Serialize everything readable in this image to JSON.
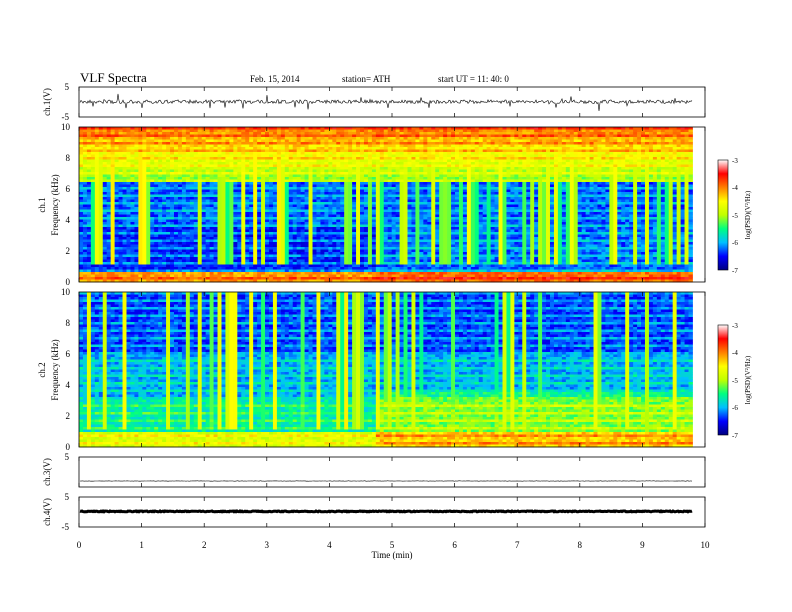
{
  "header": {
    "title": "VLF  Spectra",
    "date": "Feb. 15, 2014",
    "station": "station= ATH",
    "start": "start  UT  =    11: 40: 0"
  },
  "chart_data": [
    {
      "type": "line",
      "id": "ch1_waveform",
      "ylabel": "ch.1(V)",
      "ylim": [
        -5,
        5
      ],
      "yticks": [
        "5",
        "-5"
      ],
      "xlim": [
        0,
        10
      ],
      "x_end": 9.8,
      "baseline": 0.1
    },
    {
      "type": "heatmap",
      "id": "ch1_spectrogram",
      "ylabel_line1": "ch.1",
      "ylabel_line2": "Frequency  (kHz)",
      "ylim": [
        0,
        10
      ],
      "yticks": [
        "0",
        "2",
        "4",
        "6",
        "8",
        "10"
      ],
      "xlim": [
        0,
        10
      ],
      "x_end": 9.8,
      "change_time": 4.7,
      "colorbar": {
        "label": "log(PSD)(V²/Hz)",
        "range": [
          -7,
          -3
        ],
        "ticks": [
          "-3",
          "-4",
          "-5",
          "-6",
          "-7"
        ]
      }
    },
    {
      "type": "heatmap",
      "id": "ch2_spectrogram",
      "ylabel_line1": "ch.2",
      "ylabel_line2": "Frequency  (kHz)",
      "ylim": [
        0,
        10
      ],
      "yticks": [
        "0",
        "2",
        "4",
        "6",
        "8",
        "10"
      ],
      "xlim": [
        0,
        10
      ],
      "x_end": 9.8,
      "change_time": 4.7,
      "colorbar": {
        "label": "log(PSD)(V²/Hz)",
        "range": [
          -7,
          -3
        ],
        "ticks": [
          "-3",
          "-4",
          "-5",
          "-6",
          "-7"
        ]
      }
    },
    {
      "type": "line",
      "id": "ch3_waveform",
      "ylabel": "ch.3(V)",
      "ylim": [
        -5,
        5
      ],
      "yticks": [
        "5"
      ],
      "xlim": [
        0,
        10
      ],
      "x_end": 9.8,
      "baseline": -3.0
    },
    {
      "type": "line",
      "id": "ch4_waveform",
      "ylabel": "ch.4(V)",
      "ylim": [
        -5,
        5
      ],
      "yticks": [
        "5",
        "-5"
      ],
      "xlim": [
        0,
        10
      ],
      "x_end": 9.8,
      "baseline": 0.2
    }
  ],
  "xaxis": {
    "label": "Time  (min)",
    "ticks": [
      "0",
      "1",
      "2",
      "3",
      "4",
      "5",
      "6",
      "7",
      "8",
      "9",
      "10"
    ]
  },
  "colormap": [
    "#000080",
    "#0000ff",
    "#00c0ff",
    "#00ff80",
    "#c0ff00",
    "#ffff00",
    "#ff8000",
    "#ff0000",
    "#ffffff"
  ]
}
